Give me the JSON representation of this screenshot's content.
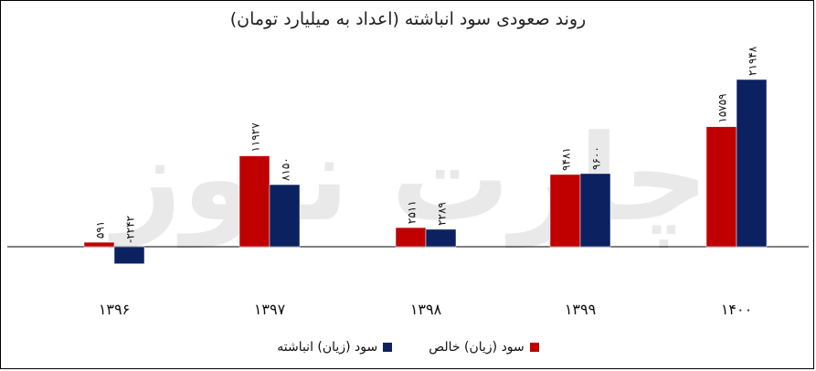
{
  "chart_data": {
    "type": "bar",
    "title": "روند صعودی سود انباشته (اعداد به میلیارد تومان)",
    "categories": [
      "۱۳۹۶",
      "۱۳۹۷",
      "۱۳۹۸",
      "۱۳۹۹",
      "۱۴۰۰"
    ],
    "series": [
      {
        "name": "سود (زیان) خالص",
        "color": "#c00000",
        "values": [
          591,
          11927,
          2511,
          9481,
          15759
        ],
        "labels": [
          "۵۹۱",
          "۱۱۹۲۷",
          "۲۵۱۱",
          "۹۴۸۱",
          "۱۵۷۵۹"
        ]
      },
      {
        "name": "سود (زیان) انباشته",
        "color": "#0b2160",
        "values": [
          -2242,
          8150,
          2289,
          9600,
          21948
        ],
        "labels": [
          "-۲۲۴۲",
          "۸۱۵۰",
          "۲۲۸۹",
          "۹۶۰۰",
          "۲۱۹۴۸"
        ]
      }
    ],
    "ylim": [
      -3000,
      23000
    ],
    "grid": false,
    "legend_position": "bottom",
    "watermark": "چارت نیوز"
  }
}
